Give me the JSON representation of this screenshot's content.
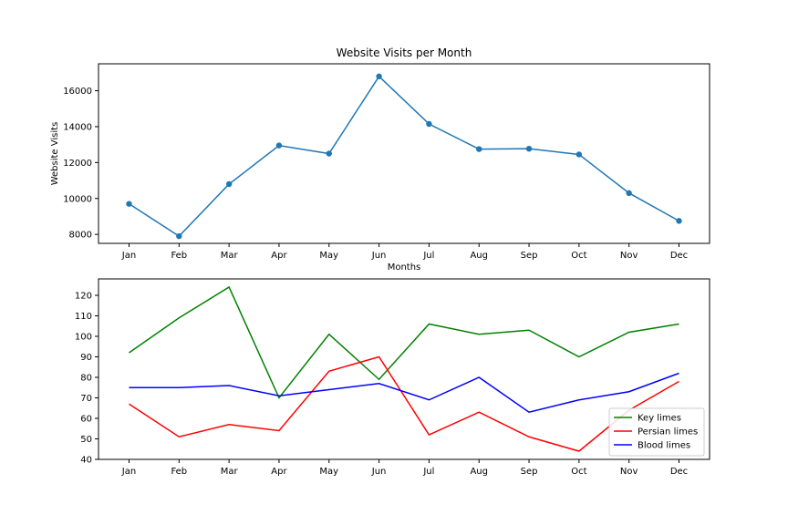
{
  "chart_data": [
    {
      "type": "line",
      "title": "Website Visits per Month",
      "xlabel": "Months",
      "ylabel": "Website Visits",
      "categories": [
        "Jan",
        "Feb",
        "Mar",
        "Apr",
        "May",
        "Jun",
        "Jul",
        "Aug",
        "Sep",
        "Oct",
        "Nov",
        "Dec"
      ],
      "values": [
        9700,
        7900,
        10800,
        12950,
        12500,
        16800,
        14150,
        12750,
        12770,
        12450,
        10300,
        8750
      ],
      "ylim": [
        7500,
        17500
      ],
      "yticks": [
        8000,
        10000,
        12000,
        14000,
        16000
      ],
      "markers": true,
      "grid": false,
      "colors": {
        "line": "#1f77b4"
      }
    },
    {
      "type": "line",
      "title": "",
      "xlabel": "",
      "ylabel": "",
      "categories": [
        "Jan",
        "Feb",
        "Mar",
        "Apr",
        "May",
        "Jun",
        "Jul",
        "Aug",
        "Sep",
        "Oct",
        "Nov",
        "Dec"
      ],
      "series": [
        {
          "name": "Key limes",
          "color": "#008000",
          "values": [
            92,
            109,
            124,
            70,
            101,
            79,
            106,
            101,
            103,
            90,
            102,
            106
          ]
        },
        {
          "name": "Persian limes",
          "color": "#ff0000",
          "values": [
            67,
            51,
            57,
            54,
            83,
            90,
            52,
            63,
            51,
            44,
            64,
            78
          ]
        },
        {
          "name": "Blood limes",
          "color": "#0000ff",
          "values": [
            75,
            75,
            76,
            71,
            74,
            77,
            69,
            80,
            63,
            69,
            73,
            82
          ]
        }
      ],
      "ylim": [
        40,
        128
      ],
      "yticks": [
        40,
        50,
        60,
        70,
        80,
        90,
        100,
        110,
        120
      ],
      "grid": false,
      "legend_position": "lower-right"
    }
  ]
}
